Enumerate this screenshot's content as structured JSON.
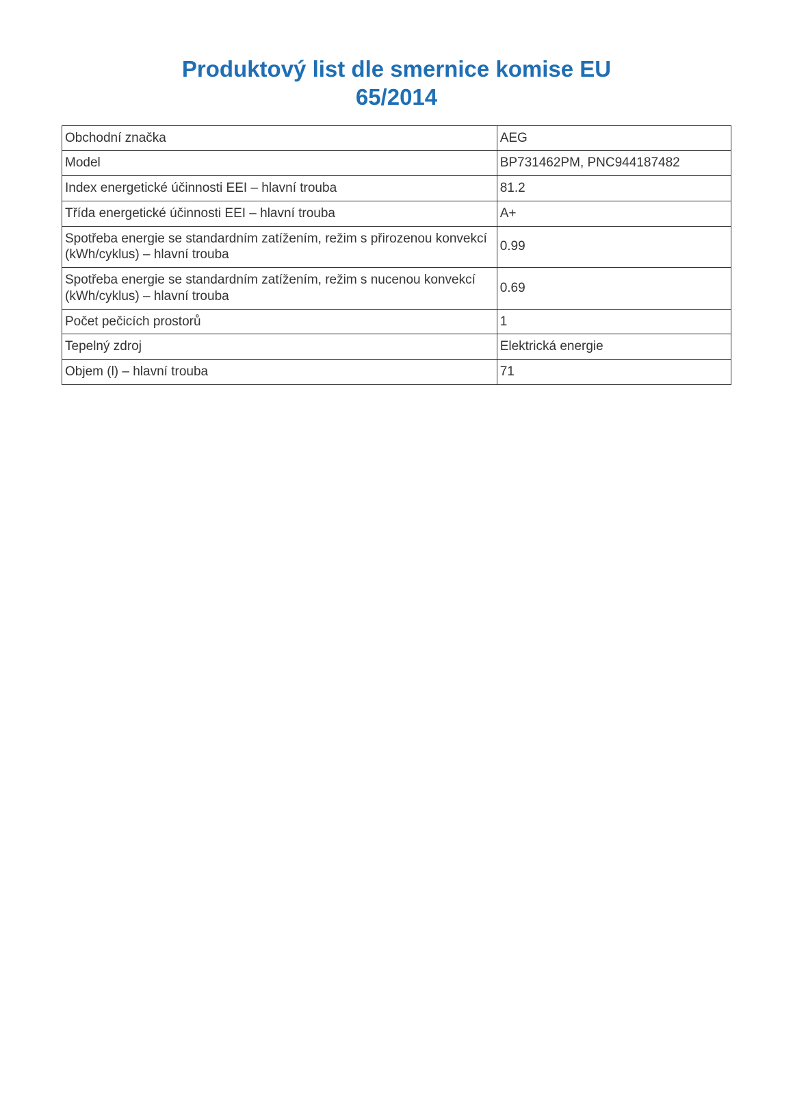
{
  "title_color": "#1f6fb5",
  "title_line1": "Produktový list dle smernice komise EU",
  "title_line2": "65/2014",
  "table": {
    "border_color": "#333333",
    "text_color": "#333333",
    "rows": [
      {
        "label": "Obchodní značka",
        "value": "AEG"
      },
      {
        "label": "Model",
        "value": "BP731462PM, PNC944187482"
      },
      {
        "label": "Index energetické účinnosti EEI – hlavní trouba",
        "value": "81.2"
      },
      {
        "label": "Třída energetické účinnosti EEI – hlavní trouba",
        "value": "A+"
      },
      {
        "label": "Spotřeba energie se standardním zatížením, režim s přirozenou konvekcí (kWh/cyklus) – hlavní trouba",
        "value": "0.99"
      },
      {
        "label": "Spotřeba energie se standardním zatížením, režim s nucenou konvekcí (kWh/cyklus) – hlavní trouba",
        "value": "0.69"
      },
      {
        "label": "Počet pečicích prostorů",
        "value": "1"
      },
      {
        "label": "Tepelný zdroj",
        "value": "Elektrická energie"
      },
      {
        "label": "Objem (l) – hlavní trouba",
        "value": "71"
      }
    ]
  }
}
